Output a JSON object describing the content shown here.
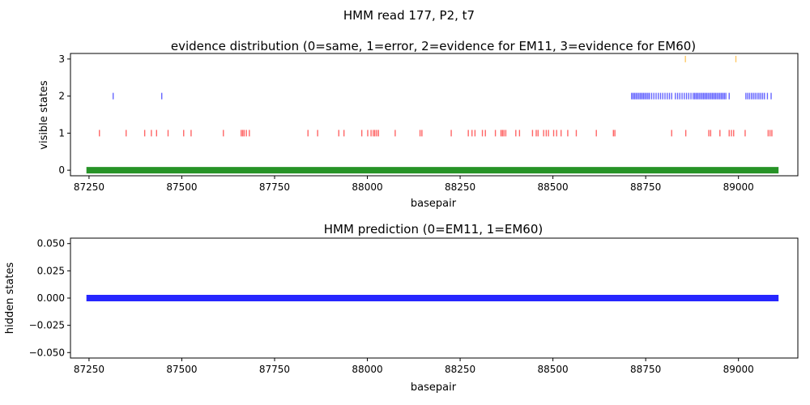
{
  "suptitle": "HMM read 177, P2, t7",
  "chart_data": [
    {
      "type": "scatter",
      "title": "evidence distribution (0=same, 1=error, 2=evidence for EM11, 3=evidence for EM60)",
      "xlabel": "basepair",
      "ylabel": "visible states",
      "xlim": [
        87200,
        89160
      ],
      "ylim": [
        -0.15,
        3.15
      ],
      "xticks": [
        87250,
        87500,
        87750,
        88000,
        88250,
        88500,
        88750,
        89000
      ],
      "xtick_labels": [
        "87250",
        "87500",
        "87750",
        "88000",
        "88250",
        "88500",
        "88750",
        "89000"
      ],
      "yticks": [
        0,
        1,
        2,
        3
      ],
      "ytick_labels": [
        "0",
        "1",
        "2",
        "3"
      ],
      "grid": false,
      "series": [
        {
          "y": 0,
          "color": "#008000",
          "range": [
            87243,
            89108
          ],
          "x": []
        },
        {
          "y": 1,
          "color": "#ff0000",
          "x": [
            87278,
            87350,
            87400,
            87418,
            87432,
            87463,
            87505,
            87525,
            87612,
            87660,
            87664,
            87668,
            87674,
            87682,
            87840,
            87866,
            87923,
            87937,
            87985,
            88001,
            88010,
            88016,
            88020,
            88025,
            88030,
            88075,
            88142,
            88147,
            88226,
            88272,
            88282,
            88290,
            88310,
            88318,
            88345,
            88360,
            88364,
            88368,
            88373,
            88400,
            88410,
            88445,
            88455,
            88460,
            88475,
            88482,
            88488,
            88502,
            88510,
            88522,
            88540,
            88563,
            88617,
            88663,
            88667,
            88820,
            88858,
            88920,
            88925,
            88950,
            88975,
            88981,
            88987,
            89018,
            89080,
            89085,
            89090
          ]
        },
        {
          "y": 2,
          "color": "#0000ff",
          "x": [
            87315,
            87446,
            88712,
            88716,
            88720,
            88724,
            88728,
            88732,
            88736,
            88740,
            88744,
            88748,
            88752,
            88756,
            88760,
            88766,
            88772,
            88778,
            88784,
            88790,
            88796,
            88802,
            88808,
            88814,
            88820,
            88830,
            88836,
            88842,
            88848,
            88854,
            88860,
            88866,
            88872,
            88878,
            88882,
            88886,
            88890,
            88894,
            88898,
            88902,
            88906,
            88910,
            88914,
            88918,
            88922,
            88926,
            88930,
            88934,
            88938,
            88942,
            88946,
            88950,
            88954,
            88958,
            88962,
            88966,
            88975,
            89020,
            89025,
            89030,
            89035,
            89040,
            89045,
            89050,
            89055,
            89060,
            89065,
            89070,
            89078,
            89088
          ]
        },
        {
          "y": 3,
          "color": "#ffa500",
          "x": [
            88857,
            88993
          ]
        }
      ]
    },
    {
      "type": "scatter",
      "title": "HMM prediction (0=EM11, 1=EM60)",
      "xlabel": "basepair",
      "ylabel": "hidden states",
      "xlim": [
        87200,
        89160
      ],
      "ylim": [
        -0.055,
        0.055
      ],
      "xticks": [
        87250,
        87500,
        87750,
        88000,
        88250,
        88500,
        88750,
        89000
      ],
      "xtick_labels": [
        "87250",
        "87500",
        "87750",
        "88000",
        "88250",
        "88500",
        "88750",
        "89000"
      ],
      "yticks": [
        -0.05,
        -0.025,
        0,
        0.025,
        0.05
      ],
      "ytick_labels": [
        "−0.050",
        "−0.025",
        "0.000",
        "0.025",
        "0.050"
      ],
      "grid": false,
      "series": [
        {
          "y": 0,
          "color": "#0000ff",
          "range": [
            87243,
            89108
          ],
          "x": []
        }
      ]
    }
  ]
}
